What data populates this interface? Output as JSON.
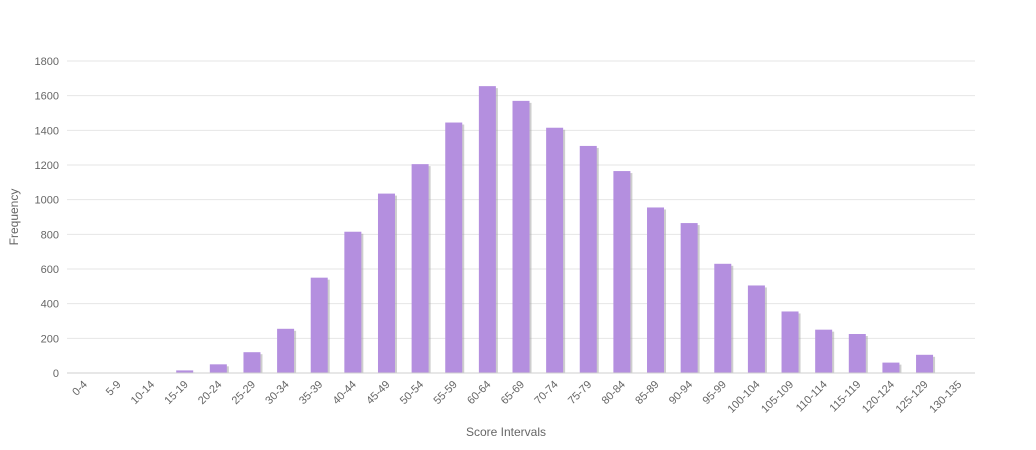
{
  "chart_data": {
    "type": "bar",
    "xlabel": "Score Intervals",
    "ylabel": "Frequency",
    "ylim": [
      0,
      1800
    ],
    "yticks": [
      0,
      200,
      400,
      600,
      800,
      1000,
      1200,
      1400,
      1600,
      1800
    ],
    "grid": true,
    "legend": "none",
    "bar_color": "#b48fdf",
    "bar_shadow_color": "#a5a5a5",
    "categories": [
      "0-4",
      "5-9",
      "10-14",
      "15-19",
      "20-24",
      "25-29",
      "30-34",
      "35-39",
      "40-44",
      "45-49",
      "50-54",
      "55-59",
      "60-64",
      "65-69",
      "70-74",
      "75-79",
      "80-84",
      "85-89",
      "90-94",
      "95-99",
      "100-104",
      "105-109",
      "110-114",
      "115-119",
      "120-124",
      "125-129",
      "130-135"
    ],
    "values": [
      0,
      0,
      0,
      15,
      50,
      120,
      255,
      550,
      815,
      1035,
      1205,
      1445,
      1655,
      1570,
      1415,
      1310,
      1165,
      955,
      865,
      630,
      505,
      355,
      250,
      225,
      60,
      105,
      0
    ]
  }
}
